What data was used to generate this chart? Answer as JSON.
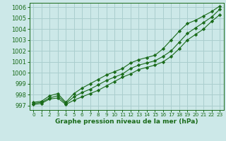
{
  "title": "Graphe pression niveau de la mer (hPa)",
  "bg_color": "#cce8e8",
  "grid_color": "#aacece",
  "line_color": "#1a6b1a",
  "x_values": [
    0,
    1,
    2,
    3,
    4,
    5,
    6,
    7,
    8,
    9,
    10,
    11,
    12,
    13,
    14,
    15,
    16,
    17,
    18,
    19,
    20,
    21,
    22,
    23
  ],
  "y_min": [
    997.1,
    997.2,
    997.6,
    997.7,
    997.1,
    997.5,
    997.8,
    998.1,
    998.4,
    998.8,
    999.2,
    999.6,
    999.9,
    1000.3,
    1000.5,
    1000.7,
    1001.0,
    1001.5,
    1002.2,
    1003.0,
    1003.5,
    1004.0,
    1004.7,
    1005.3
  ],
  "y_mean": [
    997.2,
    997.3,
    997.7,
    997.9,
    997.2,
    997.8,
    998.2,
    998.5,
    998.9,
    999.3,
    999.6,
    999.9,
    1000.4,
    1000.7,
    1000.9,
    1001.1,
    1001.5,
    1002.0,
    1002.8,
    1003.6,
    1004.1,
    1004.6,
    1005.1,
    1005.8
  ],
  "y_max": [
    997.3,
    997.4,
    997.9,
    998.1,
    997.3,
    998.1,
    998.6,
    999.0,
    999.4,
    999.8,
    1000.1,
    1000.4,
    1000.9,
    1001.2,
    1001.4,
    1001.6,
    1002.2,
    1003.0,
    1003.8,
    1004.5,
    1004.8,
    1005.2,
    1005.6,
    1006.1
  ],
  "ylim": [
    996.6,
    1006.4
  ],
  "yticks": [
    997,
    998,
    999,
    1000,
    1001,
    1002,
    1003,
    1004,
    1005,
    1006
  ],
  "xlim": [
    -0.5,
    23.5
  ],
  "xticks": [
    0,
    1,
    2,
    3,
    4,
    5,
    6,
    7,
    8,
    9,
    10,
    11,
    12,
    13,
    14,
    15,
    16,
    17,
    18,
    19,
    20,
    21,
    22,
    23
  ],
  "title_fontsize": 6.5,
  "ytick_fontsize": 6.0,
  "xtick_fontsize": 5.2,
  "title_color": "#1a6b1a",
  "figsize": [
    3.2,
    2.0
  ],
  "dpi": 100
}
